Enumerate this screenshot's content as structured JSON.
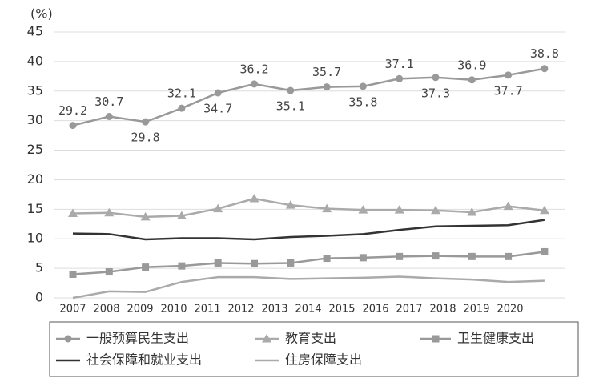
{
  "chart_data": {
    "type": "line",
    "y_unit": "(%)",
    "categories": [
      "2007",
      "2008",
      "2009",
      "2010",
      "2011",
      "2012",
      "2013",
      "2014",
      "2015",
      "2016",
      "2017",
      "2018",
      "2019",
      "2020"
    ],
    "ylim": [
      0,
      45
    ],
    "yticks": [
      0,
      5,
      10,
      15,
      20,
      25,
      30,
      35,
      40,
      45
    ],
    "grid": true,
    "series": [
      {
        "name": "一般预算民生支出",
        "color": "#999999",
        "marker": "circle",
        "values": [
          29.2,
          30.7,
          29.8,
          32.1,
          34.7,
          36.2,
          35.1,
          35.7,
          35.8,
          37.1,
          37.3,
          36.9,
          37.7,
          38.8
        ]
      },
      {
        "name": "教育支出",
        "color": "#aaaaaa",
        "marker": "triangle",
        "values": [
          14.3,
          14.4,
          13.7,
          13.9,
          15.1,
          16.8,
          15.7,
          15.1,
          14.9,
          14.9,
          14.8,
          14.5,
          15.5,
          14.8
        ]
      },
      {
        "name": "卫生健康支出",
        "color": "#999999",
        "marker": "square",
        "values": [
          4.0,
          4.4,
          5.2,
          5.4,
          5.9,
          5.8,
          5.9,
          6.7,
          6.8,
          7.0,
          7.1,
          7.0,
          7.0,
          7.8
        ]
      },
      {
        "name": "社会保障和就业支出",
        "color": "#333333",
        "marker": "none",
        "values": [
          10.9,
          10.8,
          9.9,
          10.1,
          10.1,
          9.9,
          10.3,
          10.5,
          10.8,
          11.5,
          12.1,
          12.2,
          12.3,
          13.2
        ]
      },
      {
        "name": "住房保障支出",
        "color": "#aaaaaa",
        "marker": "none",
        "values": [
          0,
          1.1,
          1.0,
          2.7,
          3.5,
          3.5,
          3.2,
          3.3,
          3.4,
          3.6,
          3.3,
          3.1,
          2.7,
          2.9
        ]
      }
    ]
  }
}
